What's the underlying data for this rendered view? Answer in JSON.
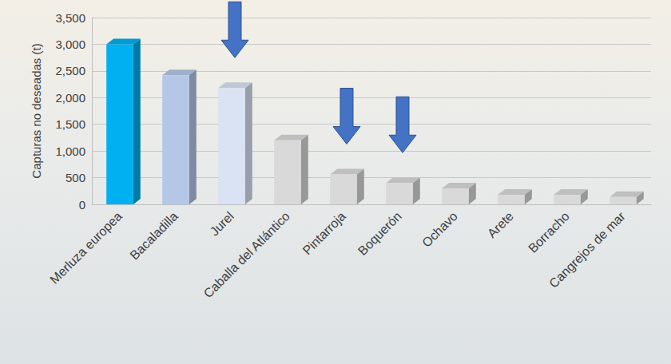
{
  "chart_data": {
    "type": "bar",
    "y_label": "Capturas no deseadas (t)",
    "categories": [
      "Merluza europea",
      "Bacaladilla",
      "Jurel",
      "Caballa del Atlántico",
      "Pintarroja",
      "Boquerón",
      "Ochavo",
      "Arete",
      "Borracho",
      "Cangrejos de mar"
    ],
    "values": [
      3000,
      2420,
      2180,
      1200,
      560,
      400,
      300,
      180,
      180,
      140
    ],
    "colors": [
      "#00b0f0",
      "#b4c7e7",
      "#dae3f3",
      "#d9d9d9",
      "#d9d9d9",
      "#d9d9d9",
      "#d9d9d9",
      "#d9d9d9",
      "#d9d9d9",
      "#d9d9d9"
    ],
    "ylim": [
      0,
      3500
    ],
    "yticks": [
      0,
      500,
      1000,
      1500,
      2000,
      2500,
      3000,
      3500
    ],
    "grid": true
  }
}
